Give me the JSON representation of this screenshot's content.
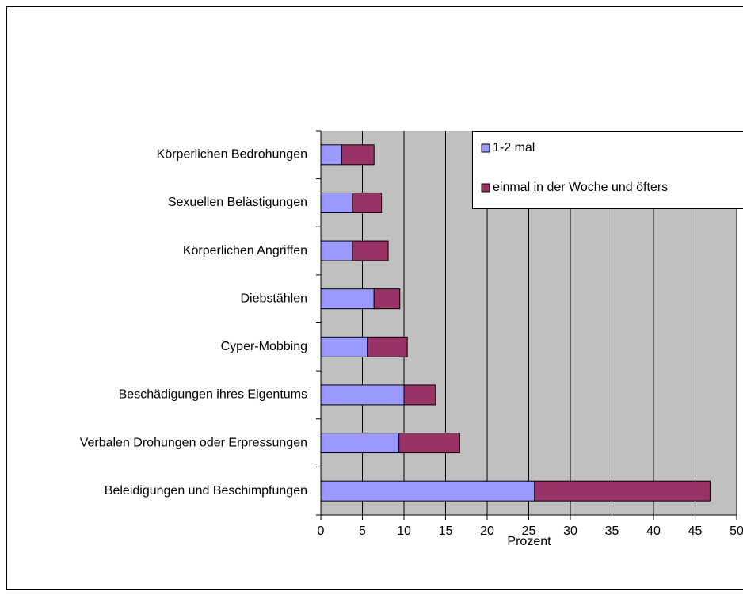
{
  "chart_data": {
    "type": "stacked-bar-horizontal",
    "categories": [
      "Körperlichen  Bedrohungen",
      "Sexuellen Belästigungen",
      "Körperlichen Angriffen",
      "Diebstählen",
      "Cyper-Mobbing",
      "Beschädigungen ihres Eigentums",
      "Verbalen Drohungen oder Erpressungen",
      "Beleidigungen und Beschimpfungen"
    ],
    "series": [
      {
        "name": "1-2 mal",
        "color": "#9999ff",
        "values": [
          2.5,
          3.8,
          3.8,
          6.4,
          5.6,
          10.0,
          9.4,
          25.7
        ]
      },
      {
        "name": "einmal in der Woche und öfters",
        "color": "#993366",
        "values": [
          3.9,
          3.5,
          4.3,
          3.1,
          4.8,
          3.8,
          7.3,
          21.1
        ]
      }
    ],
    "xlabel": "Prozent",
    "xlim": [
      0,
      50
    ],
    "xticks": [
      0,
      5,
      10,
      15,
      20,
      25,
      30,
      35,
      40,
      45,
      50
    ],
    "grid": true,
    "legend": "top-right"
  }
}
